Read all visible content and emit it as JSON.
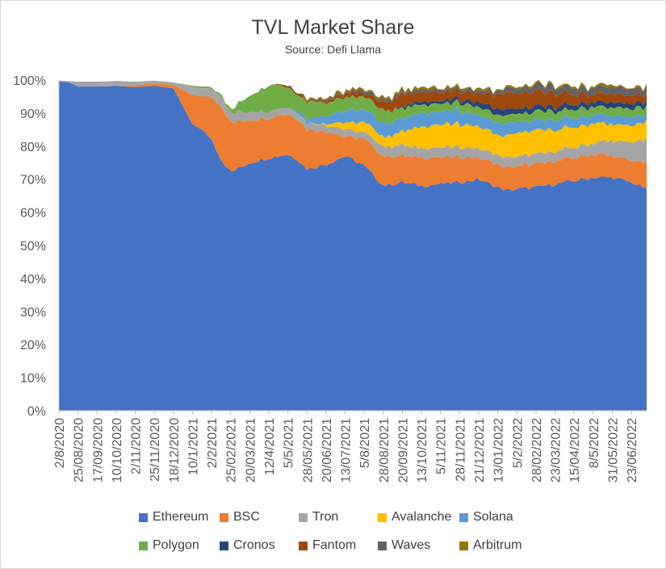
{
  "chart_data": {
    "type": "area",
    "stacked": true,
    "normalized": true,
    "title": "TVL Market Share",
    "subtitle": "Source: Defi Llama",
    "ylim": [
      0,
      100
    ],
    "y_ticks": [
      "0%",
      "10%",
      "20%",
      "30%",
      "40%",
      "50%",
      "60%",
      "70%",
      "80%",
      "90%",
      "100%"
    ],
    "x_ticks": [
      "2/8/2020",
      "25/08/2020",
      "17/09/2020",
      "10/10/2020",
      "2/11/2020",
      "25/11/2020",
      "18/12/2020",
      "10/1/2021",
      "2/2/2021",
      "25/02/2021",
      "20/03/2021",
      "12/4/2021",
      "5/5/2021",
      "28/05/2021",
      "20/06/2021",
      "13/07/2021",
      "5/8/2021",
      "28/08/2021",
      "20/09/2021",
      "13/10/2021",
      "5/11/2021",
      "28/11/2021",
      "21/12/2021",
      "13/01/2022",
      "5/2/2022",
      "28/02/2022",
      "23/03/2022",
      "15/04/2022",
      "8/5/2022",
      "31/05/2022",
      "23/06/2022"
    ],
    "x_sample_positions": [
      0,
      0.5,
      1,
      1.5,
      2,
      3,
      4,
      5,
      6,
      7,
      7.5,
      8,
      8.5,
      9,
      10,
      11,
      11.5,
      12,
      12.5,
      13,
      14,
      15,
      16,
      17,
      17.5,
      18,
      18.5,
      19,
      20,
      21,
      22,
      23,
      23.5,
      24,
      25,
      26,
      27,
      28,
      29,
      30,
      30.8
    ],
    "series": [
      {
        "name": "Ethereum",
        "color": "#4472C4",
        "values": [
          99.5,
          99.3,
          98.0,
          98.0,
          98.0,
          98.2,
          97.8,
          98.2,
          97.5,
          86.5,
          85.0,
          82.0,
          76.0,
          72.0,
          75.0,
          76.5,
          77.0,
          77.5,
          76.0,
          73.0,
          74.5,
          77.0,
          74.0,
          68.0,
          68.5,
          69.0,
          68.5,
          68.0,
          68.5,
          69.0,
          70.0,
          67.5,
          66.5,
          67.0,
          67.5,
          68.5,
          69.5,
          70.5,
          70.5,
          69.0,
          67.0
        ]
      },
      {
        "name": "BSC",
        "color": "#ED7D31",
        "values": [
          0.0,
          0.0,
          0.0,
          0.0,
          0.0,
          0.0,
          0.5,
          0.8,
          1.0,
          9.0,
          10.0,
          13.0,
          16.0,
          15.0,
          13.0,
          12.0,
          12.5,
          12.0,
          12.5,
          12.0,
          10.0,
          6.0,
          8.0,
          9.0,
          8.5,
          8.0,
          8.0,
          8.5,
          8.0,
          7.5,
          6.5,
          7.0,
          7.0,
          7.0,
          7.0,
          7.0,
          7.0,
          7.0,
          6.5,
          6.5,
          8.0
        ]
      },
      {
        "name": "Tron",
        "color": "#A5A5A5",
        "values": [
          0.3,
          0.4,
          1.5,
          1.5,
          1.5,
          1.5,
          1.2,
          0.8,
          0.8,
          2.5,
          2.5,
          2.5,
          3.0,
          3.0,
          2.5,
          2.0,
          2.0,
          2.0,
          2.0,
          2.0,
          2.0,
          2.0,
          2.0,
          3.0,
          3.0,
          3.0,
          3.0,
          3.0,
          3.0,
          3.0,
          3.0,
          3.0,
          3.0,
          3.0,
          3.0,
          3.0,
          3.0,
          3.5,
          4.5,
          5.5,
          7.0
        ]
      },
      {
        "name": "Avalanche",
        "color": "#FFC000",
        "values": [
          0.0,
          0.0,
          0.0,
          0.0,
          0.0,
          0.0,
          0.0,
          0.0,
          0.0,
          0.0,
          0.0,
          0.0,
          0.0,
          0.0,
          0.0,
          0.0,
          0.0,
          0.0,
          0.0,
          0.0,
          0.5,
          2.0,
          3.0,
          3.0,
          3.5,
          4.0,
          5.5,
          6.5,
          7.0,
          7.0,
          6.5,
          6.0,
          6.5,
          7.0,
          7.0,
          6.5,
          6.0,
          6.0,
          5.0,
          5.0,
          5.5
        ]
      },
      {
        "name": "Solana",
        "color": "#5B9BD5",
        "values": [
          0.0,
          0.0,
          0.0,
          0.0,
          0.0,
          0.0,
          0.0,
          0.0,
          0.0,
          0.0,
          0.0,
          0.0,
          0.0,
          0.0,
          0.0,
          0.0,
          0.0,
          0.0,
          0.5,
          1.5,
          2.5,
          3.5,
          4.0,
          4.0,
          4.0,
          4.0,
          4.0,
          4.0,
          4.0,
          4.0,
          3.5,
          3.5,
          3.5,
          3.5,
          3.0,
          3.0,
          3.0,
          2.5,
          2.5,
          2.5,
          2.0
        ]
      },
      {
        "name": "Polygon",
        "color": "#70AD47",
        "values": [
          0.0,
          0.0,
          0.0,
          0.0,
          0.0,
          0.0,
          0.0,
          0.0,
          0.0,
          0.3,
          0.5,
          0.5,
          0.5,
          1.0,
          5.0,
          8.0,
          7.0,
          6.0,
          5.0,
          5.0,
          4.0,
          4.0,
          4.0,
          4.0,
          3.5,
          3.0,
          3.0,
          2.5,
          2.5,
          2.5,
          2.5,
          2.5,
          2.5,
          2.5,
          2.5,
          2.5,
          2.5,
          2.5,
          2.5,
          2.5,
          2.5
        ]
      },
      {
        "name": "Cronos",
        "color": "#264478",
        "values": [
          0.0,
          0.0,
          0.0,
          0.0,
          0.0,
          0.0,
          0.0,
          0.0,
          0.0,
          0.0,
          0.0,
          0.0,
          0.0,
          0.0,
          0.0,
          0.0,
          0.0,
          0.0,
          0.0,
          0.0,
          0.0,
          0.0,
          0.0,
          0.0,
          0.0,
          0.3,
          0.8,
          1.0,
          1.0,
          1.0,
          1.5,
          2.0,
          2.0,
          1.5,
          1.5,
          1.5,
          1.5,
          1.5,
          1.5,
          1.5,
          1.5
        ]
      },
      {
        "name": "Fantom",
        "color": "#9E480E",
        "values": [
          0.0,
          0.0,
          0.0,
          0.0,
          0.0,
          0.0,
          0.0,
          0.0,
          0.0,
          0.0,
          0.0,
          0.0,
          0.0,
          0.0,
          0.0,
          0.0,
          0.3,
          0.5,
          0.5,
          0.5,
          0.5,
          1.0,
          1.0,
          2.5,
          3.0,
          4.0,
          3.0,
          3.0,
          2.5,
          2.5,
          2.5,
          4.5,
          5.0,
          4.5,
          4.5,
          4.0,
          3.0,
          2.5,
          2.5,
          2.5,
          2.0
        ]
      },
      {
        "name": "Waves",
        "color": "#636363",
        "values": [
          0.0,
          0.0,
          0.0,
          0.0,
          0.0,
          0.0,
          0.0,
          0.0,
          0.0,
          0.0,
          0.0,
          0.0,
          0.0,
          0.0,
          0.0,
          0.0,
          0.0,
          0.0,
          0.5,
          0.5,
          0.5,
          0.5,
          0.8,
          0.8,
          0.8,
          0.8,
          0.8,
          0.8,
          0.8,
          0.8,
          0.8,
          1.0,
          1.5,
          1.5,
          2.0,
          2.0,
          2.0,
          2.0,
          2.0,
          2.0,
          2.0
        ]
      },
      {
        "name": "Arbitrum",
        "color": "#997300",
        "values": [
          0.0,
          0.0,
          0.0,
          0.0,
          0.0,
          0.0,
          0.0,
          0.0,
          0.0,
          0.0,
          0.0,
          0.0,
          0.0,
          0.0,
          0.0,
          0.0,
          0.0,
          0.0,
          0.0,
          0.5,
          0.5,
          0.5,
          0.5,
          0.5,
          0.5,
          0.5,
          0.5,
          0.5,
          0.5,
          0.5,
          0.5,
          0.5,
          0.5,
          0.5,
          0.5,
          0.5,
          0.5,
          0.5,
          0.5,
          0.5,
          0.5
        ]
      }
    ],
    "legend": {
      "position": "bottom",
      "rows": 2
    }
  }
}
